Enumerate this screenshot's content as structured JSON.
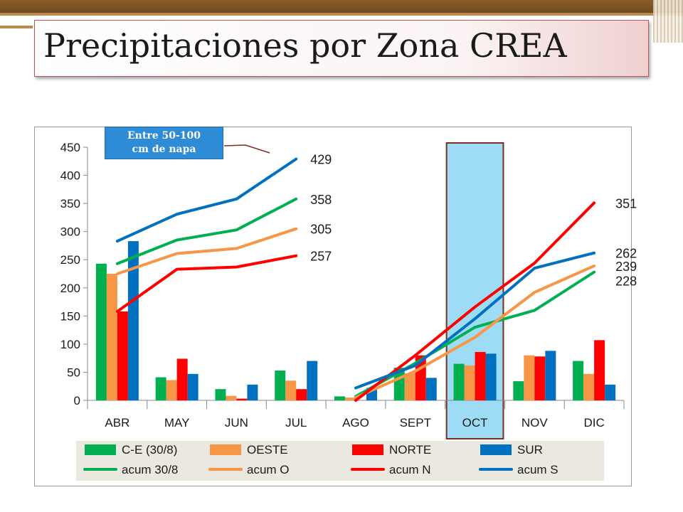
{
  "title": "Precipitaciones por Zona CREA",
  "callout": {
    "line1": "Entre 50-100",
    "line2": "cm de napa"
  },
  "chart_data": {
    "type": "bar",
    "categories": [
      "ABR",
      "MAY",
      "JUN",
      "JUL",
      "AGO",
      "SEPT",
      "OCT",
      "NOV",
      "DIC"
    ],
    "highlight_category": "OCT",
    "ylim": [
      0,
      450
    ],
    "yticks": [
      0,
      50,
      100,
      150,
      200,
      250,
      300,
      350,
      400,
      450
    ],
    "grid": false,
    "legend_position": "bottom",
    "series": [
      {
        "name": "C-E (30/8)",
        "kind": "bar",
        "color": "#00b050",
        "values": [
          243,
          41,
          20,
          53,
          7,
          58,
          65,
          34,
          70
        ]
      },
      {
        "name": "OESTE",
        "kind": "bar",
        "color": "#f79646",
        "values": [
          225,
          36,
          8,
          35,
          5,
          48,
          62,
          80,
          47
        ]
      },
      {
        "name": "NORTE",
        "kind": "bar",
        "color": "#ff0000",
        "values": [
          158,
          74,
          3,
          20,
          0,
          80,
          86,
          78,
          107
        ]
      },
      {
        "name": "SUR",
        "kind": "bar",
        "color": "#0070c0",
        "values": [
          283,
          47,
          28,
          70,
          22,
          40,
          83,
          88,
          28
        ]
      },
      {
        "name": "acum 30/8",
        "kind": "line",
        "color": "#00b050",
        "values": [
          243,
          285,
          303,
          358,
          7,
          66,
          130,
          160,
          228
        ]
      },
      {
        "name": "acum O",
        "kind": "line",
        "color": "#f79646",
        "values": [
          225,
          261,
          270,
          305,
          5,
          52,
          112,
          192,
          239
        ]
      },
      {
        "name": "acum N",
        "kind": "line",
        "color": "#ff0000",
        "values": [
          158,
          233,
          237,
          257,
          0,
          80,
          166,
          244,
          351
        ]
      },
      {
        "name": "acum S",
        "kind": "line",
        "color": "#0070c0",
        "values": [
          283,
          331,
          358,
          429,
          22,
          62,
          145,
          235,
          262
        ]
      }
    ],
    "end_labels": [
      {
        "text": "429",
        "value": 429,
        "after": "JUL"
      },
      {
        "text": "358",
        "value": 358,
        "after": "JUL"
      },
      {
        "text": "305",
        "value": 305,
        "after": "JUL"
      },
      {
        "text": "257",
        "value": 257,
        "after": "JUL"
      },
      {
        "text": "351",
        "value": 351,
        "after": "DIC"
      },
      {
        "text": "262",
        "value": 262,
        "after": "DIC"
      },
      {
        "text": "239",
        "value": 239,
        "after": "DIC"
      },
      {
        "text": "228",
        "value": 228,
        "after": "DIC"
      }
    ]
  }
}
